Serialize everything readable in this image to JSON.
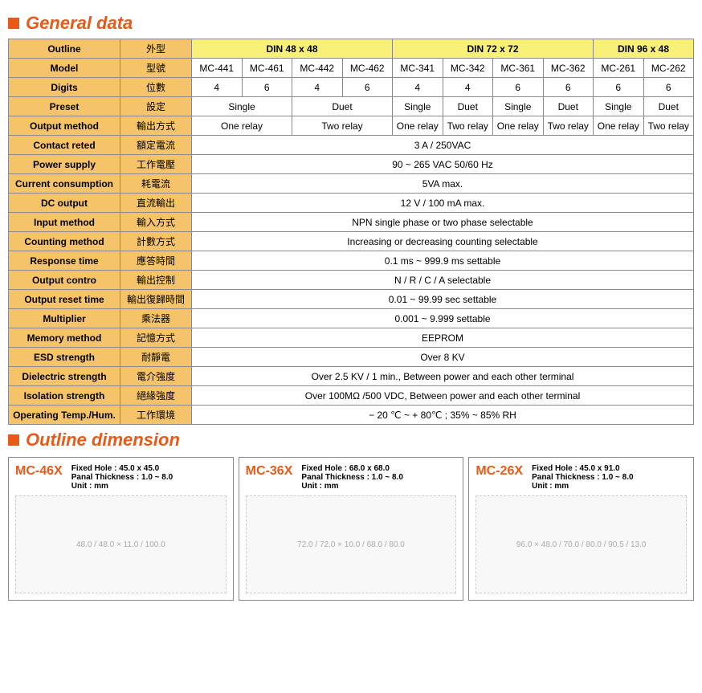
{
  "sectionGeneral": "General data",
  "sectionOutline": "Outline dimension",
  "din48": "DIN 48 x 48",
  "din72": "DIN 72 x 72",
  "din96": "DIN 96 x 48",
  "labels": {
    "outline_en": "Outline",
    "outline_zh": "外型",
    "model_en": "Model",
    "model_zh": "型號",
    "digits_en": "Digits",
    "digits_zh": "位數",
    "preset_en": "Preset",
    "preset_zh": "設定",
    "output_en": "Output method",
    "output_zh": "輸出方式",
    "contact_en": "Contact reted",
    "contact_zh": "額定電流",
    "power_en": "Power supply",
    "power_zh": "工作電壓",
    "current_en": "Current consumption",
    "current_zh": "耗電流",
    "dc_en": "DC output",
    "dc_zh": "直流輸出",
    "input_en": "Input method",
    "input_zh": "輸入方式",
    "counting_en": "Counting method",
    "counting_zh": "計數方式",
    "response_en": "Response time",
    "response_zh": "應答時間",
    "outcontrol_en": "Output contro",
    "outcontrol_zh": "輸出控制",
    "outreset_en": "Output reset time",
    "outreset_zh": "輸出復歸時間",
    "mult_en": "Multiplier",
    "mult_zh": "乘法器",
    "memory_en": "Memory method",
    "memory_zh": "記憶方式",
    "esd_en": "ESD strength",
    "esd_zh": "耐靜電",
    "dielectric_en": "Dielectric strength",
    "dielectric_zh": "電介強度",
    "isolation_en": "Isolation strength",
    "isolation_zh": "絕緣強度",
    "temp_en": "Operating Temp./Hum.",
    "temp_zh": "工作環境"
  },
  "models": [
    "MC-441",
    "MC-461",
    "MC-442",
    "MC-462",
    "MC-341",
    "MC-342",
    "MC-361",
    "MC-362",
    "MC-261",
    "MC-262"
  ],
  "digits": [
    "4",
    "6",
    "4",
    "6",
    "4",
    "4",
    "6",
    "6",
    "6",
    "6"
  ],
  "preset": {
    "single": "Single",
    "duet": "Duet"
  },
  "relay": {
    "one": "One relay",
    "two": "Two relay"
  },
  "full": {
    "contact": "3 A / 250VAC",
    "power": "90 ~ 265 VAC 50/60 Hz",
    "current": "5VA max.",
    "dc": "12 V / 100 mA max.",
    "input": "NPN single phase or two phase selectable",
    "counting": "Increasing or decreasing counting selectable",
    "response": "0.1 ms ~ 999.9 ms settable",
    "outcontrol": "N / R / C / A selectable",
    "outreset": "0.01 ~ 99.99 sec settable",
    "mult": "0.001 ~ 9.999 settable",
    "memory": "EEPROM",
    "esd": "Over 8 KV",
    "dielectric": "Over 2.5 KV / 1 min., Between power and each other terminal",
    "isolation": "Over 100MΩ /500 VDC, Between power and each other terminal",
    "temp": "− 20 ℃ ~ + 80℃ ; 35% ~ 85% RH"
  },
  "dims": [
    {
      "title": "MC-46X",
      "hole": "Fixed Hole : 45.0 x 45.0",
      "panel": "Panal Thickness : 1.0 ~ 8.0",
      "unit": "Unit : mm",
      "dims": "48.0 / 48.0 × 11.0 / 100.0"
    },
    {
      "title": "MC-36X",
      "hole": "Fixed Hole : 68.0 x 68.0",
      "panel": "Panal Thickness : 1.0 ~ 8.0",
      "unit": "Unit : mm",
      "dims": "72.0 / 72.0 × 10.0 / 68.0 / 80.0"
    },
    {
      "title": "MC-26X",
      "hole": "Fixed Hole : 45.0 x 91.0",
      "panel": "Panal Thickness : 1.0 ~ 8.0",
      "unit": "Unit : mm",
      "dims": "96.0 × 48.0 / 70.0 / 80.0 / 90.5 / 13.0"
    }
  ]
}
